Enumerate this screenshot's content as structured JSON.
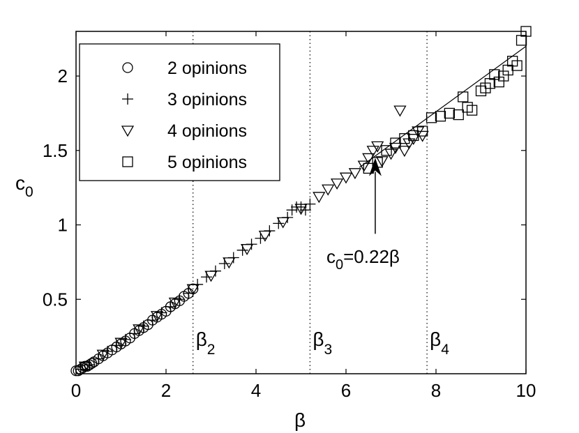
{
  "chart_data": {
    "type": "scatter",
    "title": "",
    "xlabel": "β",
    "ylabel": "c",
    "ylabel_sub": "0",
    "xlim": [
      0,
      10
    ],
    "ylim": [
      0,
      2.3
    ],
    "xticks": [
      0,
      2,
      4,
      6,
      8,
      10
    ],
    "xtick_labels": [
      "0",
      "2",
      "4",
      "6",
      "8",
      "10"
    ],
    "yticks": [
      0.5,
      1,
      1.5,
      2
    ],
    "ytick_labels": [
      "0.5",
      "1",
      "1.5",
      "2"
    ],
    "grid": false,
    "legend_position": "top-left",
    "series": [
      {
        "name": "2 opinions",
        "marker": "circle",
        "x": [
          0.0,
          0.05,
          0.1,
          0.15,
          0.2,
          0.25,
          0.3,
          0.35,
          0.4,
          0.5,
          0.6,
          0.7,
          0.8,
          0.9,
          1.0,
          1.1,
          1.2,
          1.3,
          1.4,
          1.5,
          1.6,
          1.7,
          1.8,
          1.9,
          2.0,
          2.1,
          2.2,
          2.3,
          2.4,
          2.5,
          2.6
        ],
        "y": [
          0.02,
          0.02,
          0.03,
          0.04,
          0.05,
          0.05,
          0.06,
          0.07,
          0.08,
          0.1,
          0.12,
          0.14,
          0.16,
          0.18,
          0.2,
          0.22,
          0.24,
          0.27,
          0.29,
          0.31,
          0.33,
          0.36,
          0.38,
          0.4,
          0.42,
          0.45,
          0.47,
          0.49,
          0.52,
          0.54,
          0.57
        ]
      },
      {
        "name": "3 opinions",
        "marker": "plus",
        "x": [
          0.1,
          0.3,
          0.5,
          0.7,
          0.9,
          1.1,
          1.3,
          1.5,
          1.7,
          1.9,
          2.1,
          2.3,
          2.5,
          2.7,
          2.9,
          3.1,
          3.3,
          3.5,
          3.7,
          3.9,
          4.1,
          4.3,
          4.5,
          4.7,
          4.8,
          4.9,
          5.0,
          5.1,
          5.2
        ],
        "y": [
          0.03,
          0.06,
          0.1,
          0.15,
          0.19,
          0.23,
          0.27,
          0.32,
          0.36,
          0.41,
          0.45,
          0.5,
          0.54,
          0.6,
          0.65,
          0.69,
          0.74,
          0.78,
          0.83,
          0.87,
          0.91,
          0.96,
          1.01,
          1.05,
          1.1,
          1.12,
          1.12,
          1.1,
          1.14
        ]
      },
      {
        "name": "4 opinions",
        "marker": "triangle-down",
        "x": [
          0.2,
          0.6,
          1.0,
          1.4,
          1.8,
          2.2,
          2.6,
          3.0,
          3.4,
          3.8,
          4.2,
          4.6,
          5.0,
          5.4,
          5.6,
          5.8,
          6.0,
          6.2,
          6.4,
          6.5,
          6.6,
          6.7,
          6.8,
          7.0,
          7.1,
          7.2,
          7.3,
          7.4,
          7.5,
          7.6,
          7.7
        ],
        "y": [
          0.05,
          0.13,
          0.21,
          0.3,
          0.39,
          0.48,
          0.57,
          0.66,
          0.75,
          0.84,
          0.93,
          1.02,
          1.11,
          1.19,
          1.24,
          1.28,
          1.32,
          1.35,
          1.4,
          1.45,
          1.5,
          1.53,
          1.43,
          1.48,
          1.52,
          1.77,
          1.5,
          1.55,
          1.58,
          1.63,
          1.6
        ]
      },
      {
        "name": "5 opinions",
        "marker": "square",
        "x": [
          6.5,
          6.7,
          6.9,
          7.1,
          7.3,
          7.5,
          7.7,
          7.9,
          8.1,
          8.3,
          8.5,
          8.6,
          8.7,
          8.8,
          9.0,
          9.1,
          9.2,
          9.3,
          9.4,
          9.5,
          9.6,
          9.7,
          9.8,
          9.9,
          10.0
        ],
        "y": [
          1.38,
          1.42,
          1.5,
          1.55,
          1.58,
          1.6,
          1.63,
          1.72,
          1.73,
          1.75,
          1.74,
          1.86,
          1.79,
          1.77,
          1.9,
          1.92,
          1.95,
          2.01,
          1.96,
          2.0,
          2.04,
          2.1,
          2.07,
          2.24,
          2.3
        ]
      }
    ],
    "fit_line": {
      "slope": 0.22,
      "x_start": 6.3,
      "x_end": 10.0
    },
    "vlines": [
      {
        "x": 2.6,
        "label": "β",
        "sub": "2"
      },
      {
        "x": 5.2,
        "label": "β",
        "sub": "3"
      },
      {
        "x": 7.8,
        "label": "β",
        "sub": "4"
      }
    ],
    "annotation": {
      "text_main": "c",
      "text_sub": "0",
      "text_rest": "=0.22β",
      "arrow_to": [
        6.65,
        1.45
      ],
      "arrow_from": [
        6.65,
        0.94
      ]
    }
  }
}
